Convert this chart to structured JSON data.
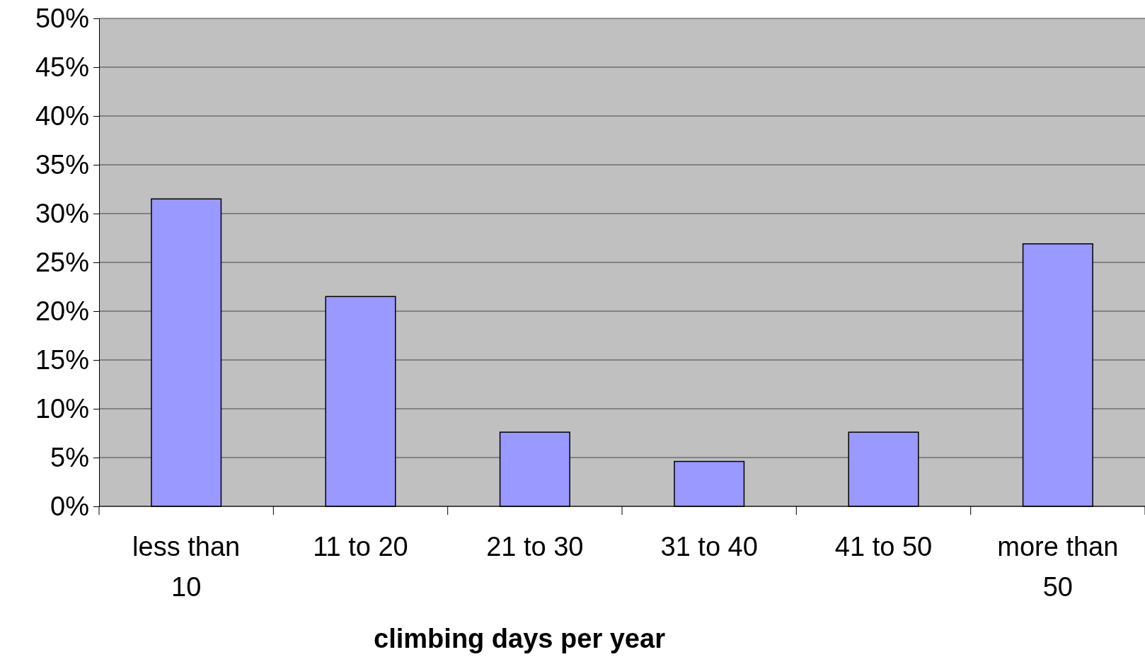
{
  "chart_data": {
    "type": "bar",
    "xlabel": "climbing days per year",
    "categories": [
      "less than 10",
      "11 to 20",
      "21 to 30",
      "31 to 40",
      "41 to 50",
      "more than 50"
    ],
    "values": [
      31.5,
      21.5,
      7.6,
      4.6,
      7.6,
      26.9
    ],
    "color": "#9999ff",
    "ylim": [
      0,
      50
    ],
    "yticks": [
      {
        "value": 0,
        "label": "0%"
      },
      {
        "value": 5,
        "label": "5%"
      },
      {
        "value": 10,
        "label": "10%"
      },
      {
        "value": 15,
        "label": "15%"
      },
      {
        "value": 20,
        "label": "20%"
      },
      {
        "value": 25,
        "label": "25%"
      },
      {
        "value": 30,
        "label": "30%"
      },
      {
        "value": 35,
        "label": "35%"
      },
      {
        "value": 40,
        "label": "40%"
      },
      {
        "value": 45,
        "label": "45%"
      },
      {
        "value": 50,
        "label": "50%"
      }
    ],
    "grid": "y"
  }
}
